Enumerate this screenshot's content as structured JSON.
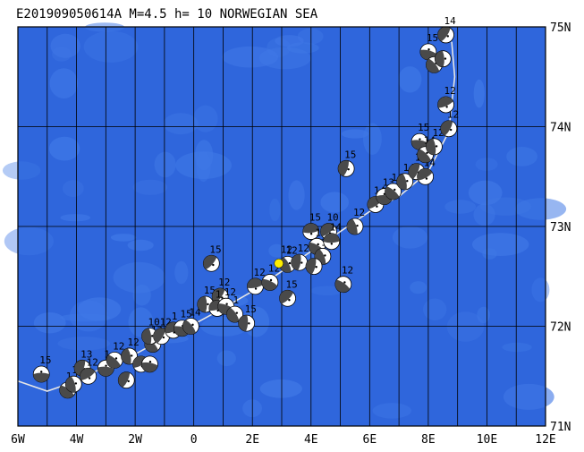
{
  "title": "E201909050614A M=4.5 h= 10 NORWEGIAN SEA",
  "map": {
    "lon_range": [
      -6,
      12
    ],
    "lat_range": [
      71,
      75
    ],
    "lon_labels": [
      "6W",
      "4W",
      "2W",
      "0",
      "2E",
      "4E",
      "6E",
      "8E",
      "10E",
      "12E"
    ],
    "lat_labels": [
      "75N",
      "74N",
      "73N",
      "72N",
      "71N"
    ],
    "colors": {
      "ocean": "#2f66dc",
      "ocean_alt": "#3f78e6",
      "ridge": "#e6e6e6",
      "grid": "#000000",
      "beachball_dark": "#4a4a4a",
      "beachball_light": "#ffffff",
      "main_event": "#ffee00"
    },
    "main_event": {
      "lon": 2.9,
      "lat": 72.63,
      "label": "12"
    },
    "ridge_path": [
      [
        -6.0,
        71.45
      ],
      [
        -5.0,
        71.35
      ],
      [
        -4.0,
        71.45
      ],
      [
        -3.0,
        71.6
      ],
      [
        -2.0,
        71.72
      ],
      [
        -1.0,
        71.88
      ],
      [
        0.0,
        72.02
      ],
      [
        1.0,
        72.18
      ],
      [
        2.0,
        72.35
      ],
      [
        3.0,
        72.55
      ],
      [
        4.0,
        72.75
      ],
      [
        5.0,
        72.95
      ],
      [
        6.0,
        73.15
      ],
      [
        7.0,
        73.3
      ],
      [
        8.0,
        73.55
      ],
      [
        8.7,
        73.95
      ],
      [
        8.9,
        74.5
      ],
      [
        8.8,
        74.85
      ]
    ],
    "events": [
      {
        "lon": -5.2,
        "lat": 71.52,
        "label": "15"
      },
      {
        "lon": -4.3,
        "lat": 71.36,
        "label": "1"
      },
      {
        "lon": -4.1,
        "lat": 71.42,
        "label": "12"
      },
      {
        "lon": -3.8,
        "lat": 71.58,
        "label": "13"
      },
      {
        "lon": -3.6,
        "lat": 71.5,
        "label": "12"
      },
      {
        "lon": -3.0,
        "lat": 71.58,
        "label": "1"
      },
      {
        "lon": -2.7,
        "lat": 71.66,
        "label": "12"
      },
      {
        "lon": -2.2,
        "lat": 71.7,
        "label": "12"
      },
      {
        "lon": -2.3,
        "lat": 71.46,
        "label": ""
      },
      {
        "lon": -1.8,
        "lat": 71.62,
        "label": ""
      },
      {
        "lon": -1.5,
        "lat": 71.62,
        "label": ""
      },
      {
        "lon": -1.4,
        "lat": 71.82,
        "label": "13"
      },
      {
        "lon": -1.5,
        "lat": 71.9,
        "label": "10"
      },
      {
        "lon": -1.1,
        "lat": 71.9,
        "label": "12"
      },
      {
        "lon": -0.7,
        "lat": 71.96,
        "label": "1"
      },
      {
        "lon": -0.4,
        "lat": 71.98,
        "label": "15"
      },
      {
        "lon": -0.1,
        "lat": 72.0,
        "label": "14"
      },
      {
        "lon": 0.4,
        "lat": 72.22,
        "label": "15"
      },
      {
        "lon": 0.9,
        "lat": 72.3,
        "label": "12"
      },
      {
        "lon": 0.8,
        "lat": 72.18,
        "label": "1"
      },
      {
        "lon": 1.1,
        "lat": 72.2,
        "label": "12"
      },
      {
        "lon": 1.4,
        "lat": 72.12,
        "label": "1"
      },
      {
        "lon": 1.8,
        "lat": 72.03,
        "label": "15"
      },
      {
        "lon": 0.6,
        "lat": 72.63,
        "label": "15"
      },
      {
        "lon": 2.1,
        "lat": 72.4,
        "label": "12"
      },
      {
        "lon": 2.6,
        "lat": 72.44,
        "label": "12"
      },
      {
        "lon": 3.2,
        "lat": 72.62,
        "label": "12"
      },
      {
        "lon": 3.6,
        "lat": 72.64,
        "label": "12"
      },
      {
        "lon": 3.2,
        "lat": 72.28,
        "label": "15"
      },
      {
        "lon": 4.0,
        "lat": 72.95,
        "label": "15"
      },
      {
        "lon": 4.2,
        "lat": 72.8,
        "label": "14"
      },
      {
        "lon": 4.4,
        "lat": 72.7,
        "label": "12"
      },
      {
        "lon": 4.1,
        "lat": 72.6,
        "label": ""
      },
      {
        "lon": 4.6,
        "lat": 72.95,
        "label": "10"
      },
      {
        "lon": 4.7,
        "lat": 72.85,
        "label": "14"
      },
      {
        "lon": 5.1,
        "lat": 72.42,
        "label": "12"
      },
      {
        "lon": 5.5,
        "lat": 73.0,
        "label": "12"
      },
      {
        "lon": 5.2,
        "lat": 73.58,
        "label": "15"
      },
      {
        "lon": 6.2,
        "lat": 73.22,
        "label": "14"
      },
      {
        "lon": 6.5,
        "lat": 73.3,
        "label": "13"
      },
      {
        "lon": 6.8,
        "lat": 73.35,
        "label": "14"
      },
      {
        "lon": 7.2,
        "lat": 73.45,
        "label": "14"
      },
      {
        "lon": 7.6,
        "lat": 73.55,
        "label": "14"
      },
      {
        "lon": 7.9,
        "lat": 73.5,
        "label": "14"
      },
      {
        "lon": 7.7,
        "lat": 73.85,
        "label": "15"
      },
      {
        "lon": 7.9,
        "lat": 73.72,
        "label": "14"
      },
      {
        "lon": 8.2,
        "lat": 73.8,
        "label": "12"
      },
      {
        "lon": 8.7,
        "lat": 73.98,
        "label": "12"
      },
      {
        "lon": 8.6,
        "lat": 74.22,
        "label": "12"
      },
      {
        "lon": 8.0,
        "lat": 74.75,
        "label": "15"
      },
      {
        "lon": 8.2,
        "lat": 74.62,
        "label": ""
      },
      {
        "lon": 8.5,
        "lat": 74.68,
        "label": ""
      },
      {
        "lon": 8.6,
        "lat": 74.92,
        "label": "14"
      }
    ]
  }
}
